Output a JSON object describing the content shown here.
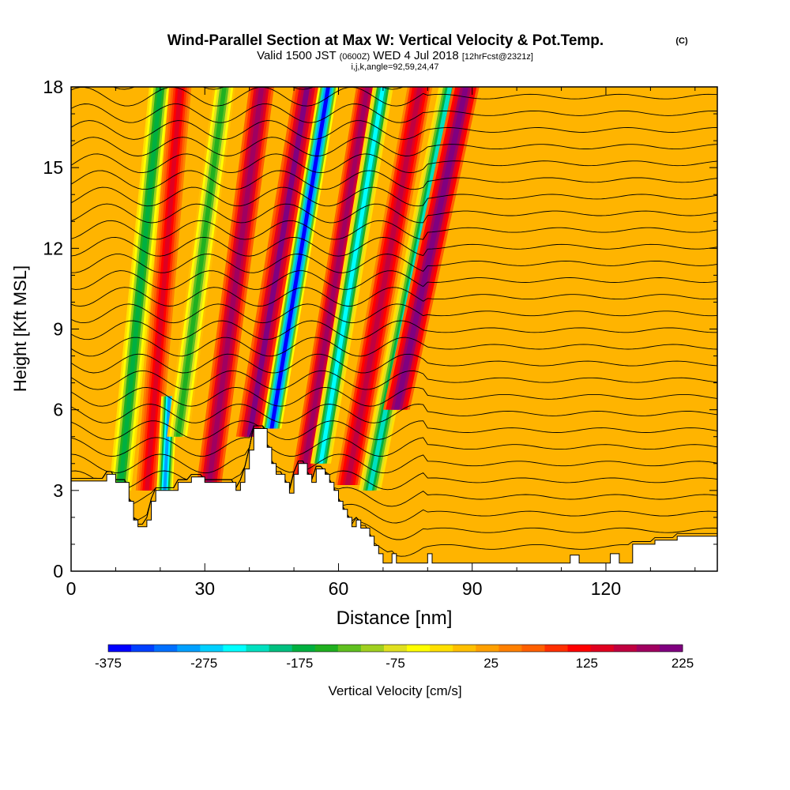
{
  "chart_data": {
    "type": "heatmap",
    "title": "Wind-Parallel Section at Max W: Vertical Velocity & Pot.Temp.",
    "title_mark": "(C)",
    "subtitle_parts": [
      "Valid 1500 JST",
      "(0600Z)",
      "WED 4 Jul 2018",
      "[12hrFcst@2321z]"
    ],
    "subtitle2": "i,j,k,angle=92,59,24,47",
    "xlabel": "Distance [nm]",
    "ylabel": "Height [Kft MSL]",
    "xlim": [
      0,
      145
    ],
    "ylim": [
      0,
      18
    ],
    "x_ticks": [
      "0",
      "30",
      "60",
      "90",
      "120"
    ],
    "x_tick_values": [
      0,
      30,
      60,
      90,
      120
    ],
    "y_ticks": [
      "0",
      "3",
      "6",
      "9",
      "12",
      "15",
      "18"
    ],
    "y_tick_values": [
      0,
      3,
      6,
      9,
      12,
      15,
      18
    ],
    "colorbar": {
      "label": "Vertical Velocity [cm/s]",
      "min": -375,
      "max": 225,
      "tick_labels": [
        "-375",
        "-275",
        "-175",
        "-75",
        "25",
        "125",
        "225"
      ],
      "tick_values": [
        -375,
        -275,
        -175,
        -75,
        25,
        125,
        225
      ],
      "colors": [
        "#0000ff",
        "#0040ff",
        "#0070ff",
        "#00a0ff",
        "#00d0ff",
        "#00ffff",
        "#00e0c0",
        "#00c080",
        "#00b040",
        "#20b020",
        "#60c020",
        "#a0d020",
        "#e0e020",
        "#ffff00",
        "#ffe000",
        "#ffc000",
        "#ffa000",
        "#ff8000",
        "#ff6000",
        "#ff3000",
        "#ff0000",
        "#e00020",
        "#c00040",
        "#a00060",
        "#800080"
      ]
    },
    "bands": [
      {
        "x": 11,
        "w": 2.5,
        "tilt": 0.6,
        "peak": -180,
        "ymin": 3.0,
        "ymax": 18
      },
      {
        "x": 17,
        "w": 2.5,
        "tilt": 0.5,
        "peak": 150,
        "ymin": 3.0,
        "ymax": 18
      },
      {
        "x": 21,
        "w": 1.8,
        "tilt": 0.3,
        "peak": -300,
        "ymin": 3.0,
        "ymax": 6.5
      },
      {
        "x": 24,
        "w": 2.5,
        "tilt": 0.8,
        "peak": -150,
        "ymin": 5.0,
        "ymax": 18
      },
      {
        "x": 31,
        "w": 2.8,
        "tilt": 0.8,
        "peak": 200,
        "ymin": 3.3,
        "ymax": 18
      },
      {
        "x": 40,
        "w": 3.0,
        "tilt": 1.0,
        "peak": 210,
        "ymin": 5.0,
        "ymax": 18
      },
      {
        "x": 45,
        "w": 2.2,
        "tilt": 1.0,
        "peak": -370,
        "ymin": 5.3,
        "ymax": 18
      },
      {
        "x": 52,
        "w": 2.5,
        "tilt": 1.0,
        "peak": 200,
        "ymin": 3.5,
        "ymax": 18
      },
      {
        "x": 56,
        "w": 2.3,
        "tilt": 1.0,
        "peak": -250,
        "ymin": 4.0,
        "ymax": 18
      },
      {
        "x": 62,
        "w": 2.8,
        "tilt": 1.1,
        "peak": 170,
        "ymin": 3.2,
        "ymax": 18
      },
      {
        "x": 67,
        "w": 2.5,
        "tilt": 1.2,
        "peak": -230,
        "ymin": 3.0,
        "ymax": 18
      },
      {
        "x": 73,
        "w": 3.0,
        "tilt": 1.3,
        "peak": 225,
        "ymin": 6.0,
        "ymax": 18
      }
    ],
    "terrain": [
      [
        0,
        3.35
      ],
      [
        8,
        3.35
      ],
      [
        8,
        3.6
      ],
      [
        10,
        3.6
      ],
      [
        10,
        3.3
      ],
      [
        13,
        3.3
      ],
      [
        13,
        2.6
      ],
      [
        14,
        2.6
      ],
      [
        14,
        1.9
      ],
      [
        15,
        1.9
      ],
      [
        15,
        1.65
      ],
      [
        17,
        1.65
      ],
      [
        17,
        1.9
      ],
      [
        18,
        1.9
      ],
      [
        18,
        2.6
      ],
      [
        19,
        2.6
      ],
      [
        19,
        3.0
      ],
      [
        24,
        3.0
      ],
      [
        24,
        3.3
      ],
      [
        27,
        3.3
      ],
      [
        27,
        3.5
      ],
      [
        30,
        3.5
      ],
      [
        30,
        3.3
      ],
      [
        37,
        3.3
      ],
      [
        37,
        3.0
      ],
      [
        38,
        3.0
      ],
      [
        38,
        3.3
      ],
      [
        39,
        3.3
      ],
      [
        39,
        3.8
      ],
      [
        40,
        3.8
      ],
      [
        40,
        4.5
      ],
      [
        41,
        4.5
      ],
      [
        41,
        5.3
      ],
      [
        44,
        5.3
      ],
      [
        44,
        4.6
      ],
      [
        45,
        4.6
      ],
      [
        45,
        4.0
      ],
      [
        46,
        4.0
      ],
      [
        46,
        3.6
      ],
      [
        48,
        3.6
      ],
      [
        48,
        3.3
      ],
      [
        49,
        3.3
      ],
      [
        49,
        2.9
      ],
      [
        50,
        2.9
      ],
      [
        50,
        3.6
      ],
      [
        51,
        3.6
      ],
      [
        51,
        4.0
      ],
      [
        53,
        4.0
      ],
      [
        53,
        3.6
      ],
      [
        54,
        3.6
      ],
      [
        54,
        3.3
      ],
      [
        55,
        3.3
      ],
      [
        55,
        3.8
      ],
      [
        57,
        3.8
      ],
      [
        57,
        3.6
      ],
      [
        58,
        3.6
      ],
      [
        58,
        3.3
      ],
      [
        59,
        3.3
      ],
      [
        59,
        3.0
      ],
      [
        60,
        3.0
      ],
      [
        60,
        2.6
      ],
      [
        61,
        2.6
      ],
      [
        61,
        2.3
      ],
      [
        62,
        2.3
      ],
      [
        62,
        2.0
      ],
      [
        63,
        2.0
      ],
      [
        63,
        1.65
      ],
      [
        64,
        1.65
      ],
      [
        64,
        1.9
      ],
      [
        65,
        1.9
      ],
      [
        65,
        1.6
      ],
      [
        67,
        1.6
      ],
      [
        67,
        1.3
      ],
      [
        68,
        1.3
      ],
      [
        68,
        0.95
      ],
      [
        69,
        0.95
      ],
      [
        69,
        0.65
      ],
      [
        70,
        0.65
      ],
      [
        70,
        0.3
      ],
      [
        72,
        0.3
      ],
      [
        72,
        0.65
      ],
      [
        73,
        0.65
      ],
      [
        73,
        0.3
      ],
      [
        80,
        0.3
      ],
      [
        80,
        0.65
      ],
      [
        81,
        0.65
      ],
      [
        81,
        0.3
      ],
      [
        112,
        0.3
      ],
      [
        112,
        0.6
      ],
      [
        114,
        0.6
      ],
      [
        114,
        0.3
      ],
      [
        121,
        0.3
      ],
      [
        121,
        0.65
      ],
      [
        123,
        0.65
      ],
      [
        123,
        0.3
      ],
      [
        126,
        0.3
      ],
      [
        126,
        1.0
      ],
      [
        131,
        1.0
      ],
      [
        131,
        1.15
      ],
      [
        136,
        1.15
      ],
      [
        136,
        1.3
      ],
      [
        145,
        1.3
      ],
      [
        145,
        0
      ],
      [
        0,
        0
      ]
    ]
  }
}
